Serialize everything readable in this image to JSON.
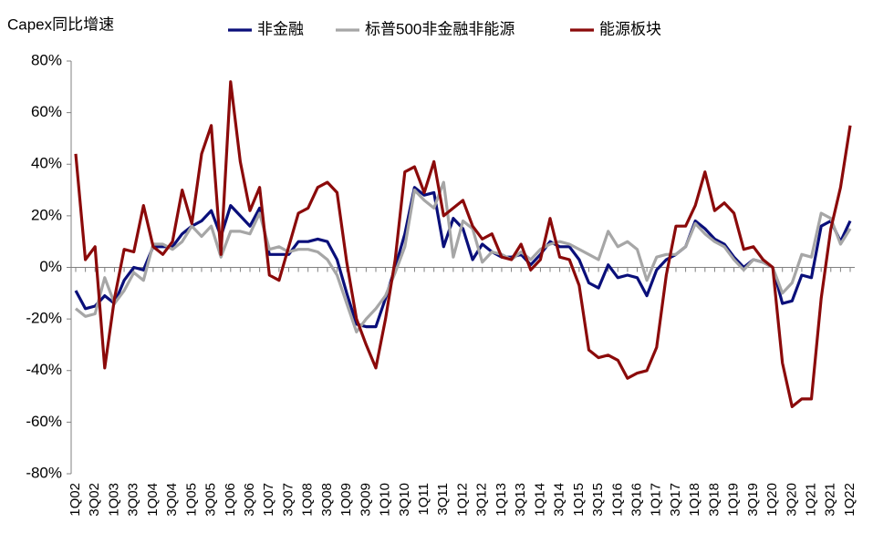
{
  "chart_data": {
    "type": "line",
    "title": "Capex同比增速",
    "categories": [
      "1Q02",
      null,
      "3Q02",
      null,
      "1Q03",
      null,
      "3Q03",
      null,
      "1Q04",
      null,
      "3Q04",
      null,
      "1Q05",
      null,
      "3Q05",
      null,
      "1Q06",
      null,
      "3Q06",
      null,
      "1Q07",
      null,
      "3Q07",
      null,
      "1Q08",
      null,
      "3Q08",
      null,
      "1Q09",
      null,
      "3Q09",
      null,
      "1Q10",
      null,
      "3Q10",
      null,
      "1Q11",
      null,
      "3Q11",
      null,
      "1Q12",
      null,
      "3Q12",
      null,
      "1Q13",
      null,
      "3Q13",
      null,
      "1Q14",
      null,
      "3Q14",
      null,
      "1Q15",
      null,
      "3Q15",
      null,
      "1Q16",
      null,
      "3Q16",
      null,
      "1Q17",
      null,
      "3Q17",
      null,
      "1Q18",
      null,
      "3Q18",
      null,
      "1Q19",
      null,
      "3Q19",
      null,
      "1Q20",
      null,
      "3Q20",
      null,
      "1Q21",
      null,
      "3Q21",
      null,
      "1Q22"
    ],
    "series": [
      {
        "name": "非金融",
        "color": "#0a0f7a",
        "values": [
          -9,
          -16,
          -15,
          -11,
          -14,
          -5,
          0,
          -1,
          8,
          8,
          8,
          13,
          16,
          18,
          22,
          12,
          24,
          20,
          16,
          23,
          5,
          5,
          5,
          10,
          10,
          11,
          10,
          3,
          -10,
          -22,
          -23,
          -23,
          -12,
          0,
          13,
          31,
          28,
          29,
          8,
          19,
          15,
          3,
          9,
          6,
          4,
          4,
          5,
          1,
          5,
          10,
          8,
          8,
          3,
          -6,
          -8,
          1,
          -4,
          -3,
          -4,
          -11,
          -1,
          3,
          5,
          8,
          18,
          15,
          11,
          9,
          4,
          0,
          3,
          2,
          0,
          -14,
          -13,
          -3,
          -4,
          16,
          18,
          10,
          18
        ]
      },
      {
        "name": "标普500非金融非能源",
        "color": "#a6a6a6",
        "values": [
          -16,
          -19,
          -18,
          -4,
          -14,
          -9,
          -2,
          -5,
          9,
          9,
          7,
          10,
          16,
          12,
          16,
          4,
          14,
          14,
          13,
          21,
          7,
          8,
          6,
          7,
          7,
          6,
          3,
          -3,
          -14,
          -25,
          -20,
          -16,
          -11,
          -2,
          8,
          30,
          26,
          23,
          33,
          4,
          18,
          15,
          2,
          6,
          5,
          3,
          6,
          3,
          7,
          9,
          10,
          9,
          7,
          5,
          3,
          14,
          8,
          10,
          7,
          -5,
          4,
          5,
          5,
          8,
          17,
          13,
          10,
          8,
          3,
          -1,
          3,
          2,
          0,
          -10,
          -6,
          5,
          4,
          21,
          19,
          9,
          15
        ]
      },
      {
        "name": "能源板块",
        "color": "#8b0a0a",
        "values": [
          44,
          3,
          8,
          -39,
          -12,
          7,
          6,
          24,
          8,
          5,
          10,
          30,
          17,
          44,
          55,
          5,
          72,
          41,
          22,
          31,
          -3,
          -5,
          8,
          21,
          23,
          31,
          33,
          29,
          2,
          -20,
          -30,
          -39,
          -20,
          3,
          37,
          39,
          29,
          41,
          20,
          23,
          26,
          16,
          11,
          13,
          4,
          3,
          9,
          -1,
          3,
          19,
          4,
          3,
          -7,
          -32,
          -35,
          -34,
          -36,
          -43,
          -41,
          -40,
          -31,
          -3,
          16,
          16,
          24,
          37,
          22,
          25,
          21,
          7,
          8,
          3,
          0,
          -37,
          -54,
          -51,
          -51,
          -12,
          15,
          31,
          55
        ]
      }
    ],
    "ylim": [
      -80,
      80
    ],
    "yticks": [
      {
        "value": 80,
        "label": "80%"
      },
      {
        "value": 60,
        "label": "60%"
      },
      {
        "value": 40,
        "label": "40%"
      },
      {
        "value": 20,
        "label": "20%"
      },
      {
        "value": 0,
        "label": "0%"
      },
      {
        "value": -20,
        "label": "-20%"
      },
      {
        "value": -40,
        "label": "-40%"
      },
      {
        "value": -60,
        "label": "-60%"
      },
      {
        "value": -80,
        "label": "-80%"
      }
    ],
    "negative_tick_color": "#ff0000",
    "grid": false,
    "legend": "top"
  }
}
